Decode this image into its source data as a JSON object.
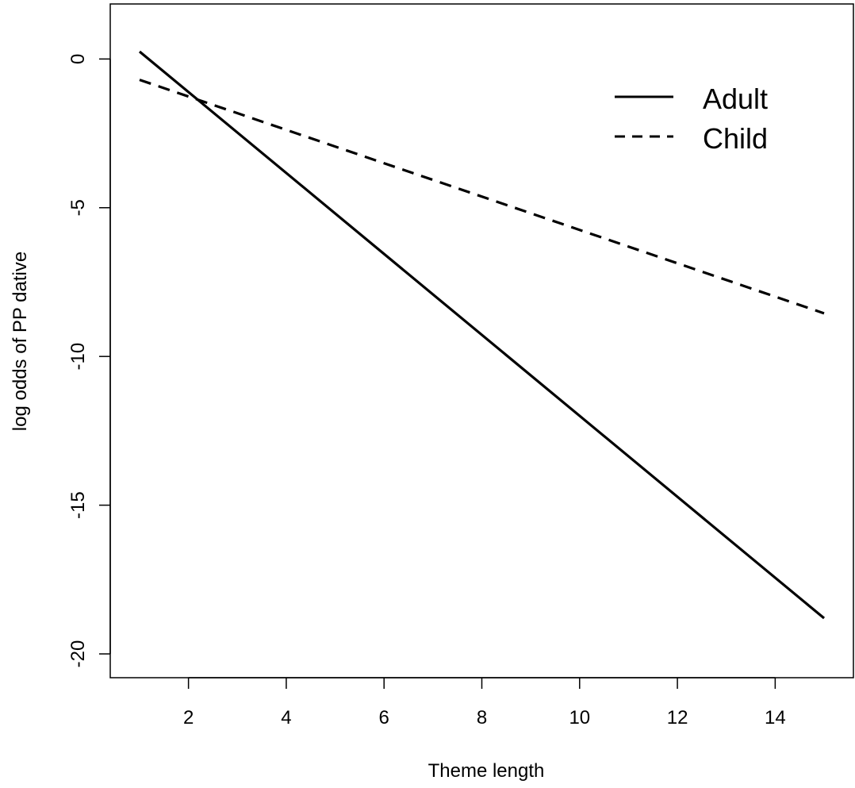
{
  "chart_data": {
    "type": "line",
    "title": "",
    "xlabel": "Theme length",
    "ylabel": "log odds of PP dative",
    "xlim": [
      0.4,
      15.6
    ],
    "ylim": [
      -20.8,
      1.85
    ],
    "x_ticks": [
      2,
      4,
      6,
      8,
      10,
      12,
      14
    ],
    "x_tick_labels": [
      "2",
      "4",
      "6",
      "8",
      "10",
      "12",
      "14"
    ],
    "y_ticks": [
      0,
      -5,
      -10,
      -15,
      -20
    ],
    "y_tick_labels": [
      "0",
      "-5",
      "-10",
      "-15",
      "-20"
    ],
    "grid": false,
    "legend_position": "top-right",
    "series": [
      {
        "name": "Adult",
        "line_style": "solid",
        "color": "#000000",
        "x": [
          1,
          15
        ],
        "y": [
          0.25,
          -18.8
        ]
      },
      {
        "name": "Child",
        "line_style": "dashed",
        "color": "#000000",
        "x": [
          1,
          15
        ],
        "y": [
          -0.7,
          -8.55
        ]
      }
    ]
  }
}
